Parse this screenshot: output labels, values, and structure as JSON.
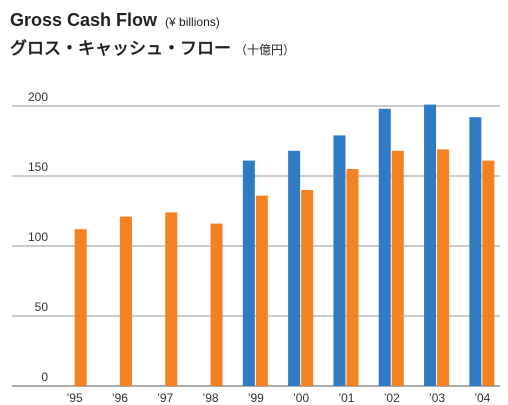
{
  "chart_data": {
    "type": "bar",
    "title": "Gross Cash Flow",
    "title_unit": "(¥ billions)",
    "subtitle": "グロス・キャッシュ・フロー",
    "subtitle_unit": "（十億円）",
    "categories": [
      "’95",
      "’96",
      "’97",
      "’98",
      "’99",
      "’00",
      "’01",
      "’02",
      "’03",
      "’04"
    ],
    "series": [
      {
        "color": "#2f7cc4",
        "values": [
          null,
          null,
          null,
          null,
          161,
          168,
          179,
          198,
          201,
          192
        ]
      },
      {
        "color": "#f58220",
        "values": [
          112,
          121,
          124,
          116,
          136,
          140,
          155,
          168,
          169,
          161
        ]
      }
    ],
    "ylim": [
      0,
      200
    ],
    "yticks": [
      0,
      50,
      100,
      150,
      200
    ],
    "grid": true
  }
}
